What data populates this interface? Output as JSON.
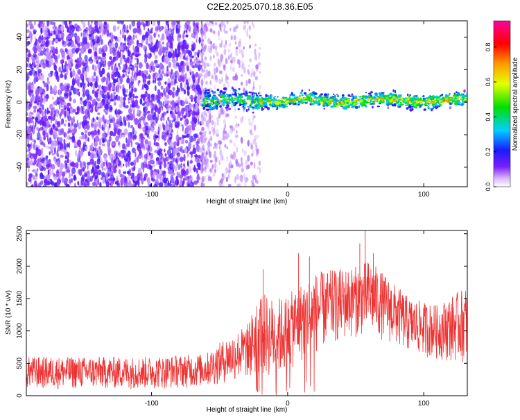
{
  "title": "C2E2.2025.070.18.36.E05",
  "chart_data": [
    {
      "type": "heatmap",
      "panel": "top",
      "xlabel": "Height of straight line (km)",
      "ylabel": "Frequency (Hz)",
      "xlim": [
        -192,
        132
      ],
      "ylim": [
        -52,
        50
      ],
      "xticks": [
        -100,
        0,
        100
      ],
      "xtick_labels": [
        "-100",
        "0",
        "100"
      ],
      "yticks": [
        -40,
        -20,
        0,
        20,
        40
      ],
      "ytick_labels": [
        "-40",
        "-20",
        "0",
        "20",
        "40"
      ],
      "colorbar": {
        "label": "Normalized spectral amplitude",
        "range": [
          0,
          0.95
        ],
        "ticks": [
          0,
          0.2,
          0.4,
          0.6,
          0.8
        ],
        "tick_labels": [
          "0.0",
          "0.2",
          "0.4",
          "0.6",
          "0.8"
        ],
        "colormap": "rainbow (white-violet-blue-cyan-green-yellow-orange-red-magenta)"
      },
      "regions": [
        {
          "x_range": [
            -192,
            -63
          ],
          "freq_range": [
            -52,
            50
          ],
          "amplitude": 0.1,
          "character": "broadband noise"
        },
        {
          "x_range": [
            -63,
            -20
          ],
          "freq_range": [
            -52,
            50
          ],
          "amplitude": 0.05,
          "character": "fading noise"
        },
        {
          "x_range": [
            -63,
            132
          ],
          "freq_center": 1,
          "freq_halfwidth": 6,
          "amplitude": 0.8,
          "character": "narrow signal band near 0 Hz"
        }
      ]
    },
    {
      "type": "line",
      "panel": "bottom",
      "color": "#ee3333",
      "xlabel": "Height of straight line (km)",
      "ylabel": "SNR (10 * v/v)",
      "xlim": [
        -192,
        132
      ],
      "ylim": [
        0,
        2550
      ],
      "xticks": [
        -100,
        0,
        100
      ],
      "xtick_labels": [
        "-100",
        "0",
        "100"
      ],
      "yticks": [
        0,
        500,
        1000,
        1500,
        2000,
        2500
      ],
      "ytick_labels": [
        "0",
        "500",
        "1000",
        "1500",
        "2000",
        "2500"
      ],
      "envelope": {
        "x": [
          -192,
          -150,
          -100,
          -60,
          -45,
          -30,
          -20,
          -10,
          0,
          10,
          20,
          35,
          50,
          60,
          75,
          90,
          110,
          132
        ],
        "low": [
          100,
          100,
          100,
          130,
          200,
          250,
          300,
          250,
          350,
          500,
          650,
          800,
          900,
          950,
          800,
          650,
          550,
          500
        ],
        "high": [
          600,
          600,
          600,
          650,
          900,
          1100,
          1600,
          1500,
          1550,
          1750,
          1900,
          1950,
          2000,
          2100,
          1800,
          1500,
          1400,
          1700
        ]
      },
      "peaks": [
        {
          "x": -18,
          "y": 1950
        },
        {
          "x": 8,
          "y": 2200
        },
        {
          "x": 16,
          "y": 2150
        },
        {
          "x": 53,
          "y": 2350
        },
        {
          "x": 57,
          "y": 2550
        },
        {
          "x": 63,
          "y": 2200
        }
      ]
    }
  ]
}
